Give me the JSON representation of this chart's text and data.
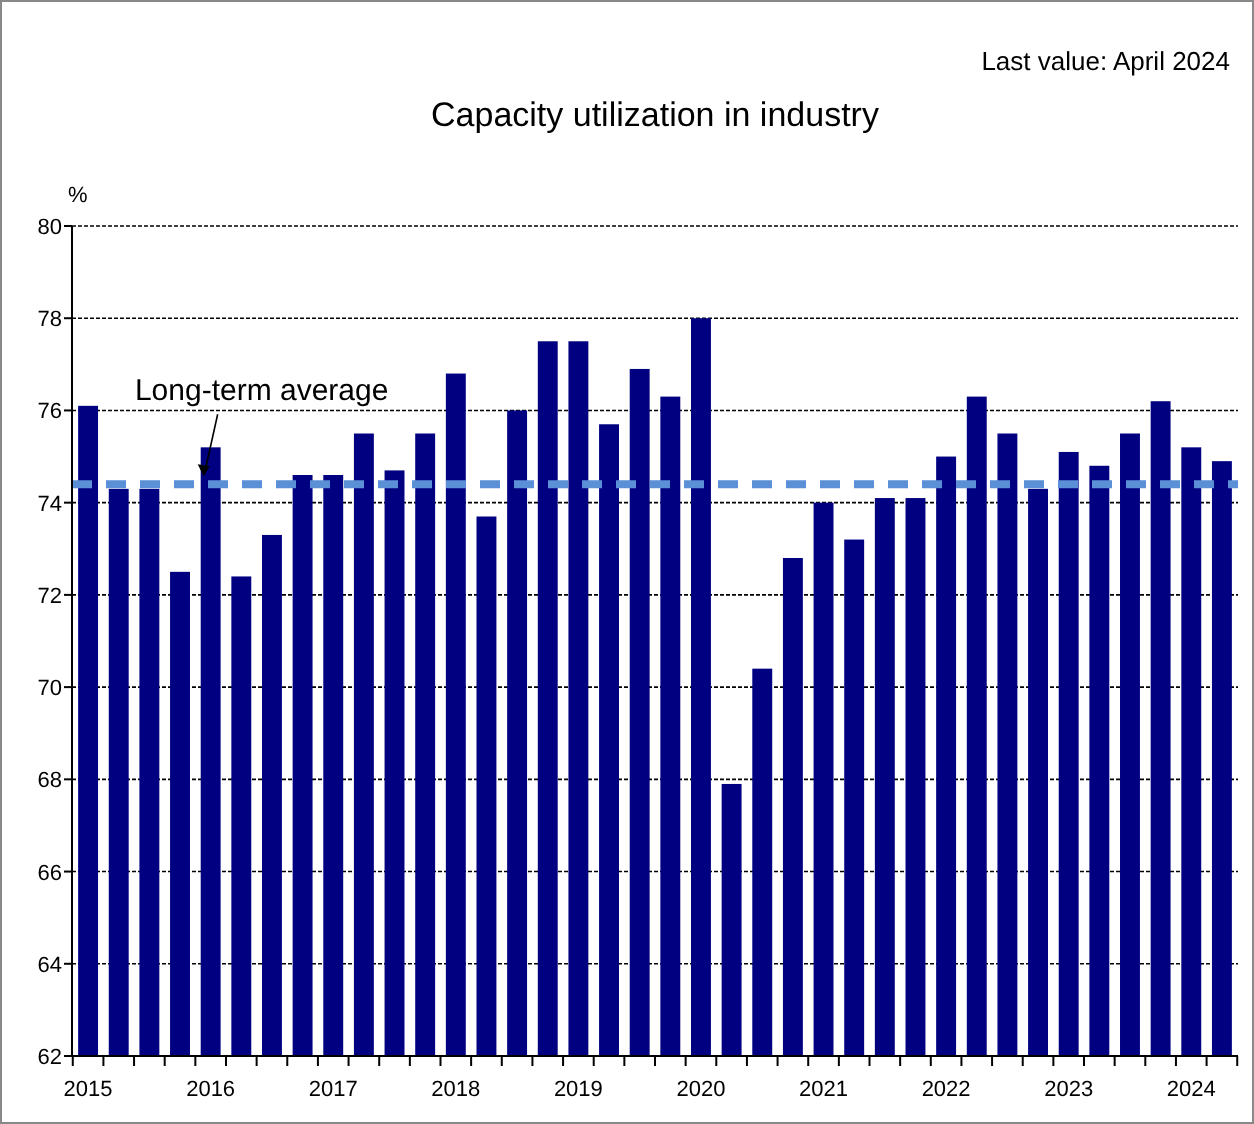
{
  "chart_data": {
    "type": "bar",
    "title": "Capacity utilization in industry",
    "ylabel": "%",
    "annotations": [
      "Last value: April 2024"
    ],
    "categories": [
      "2015",
      null,
      null,
      null,
      "2016",
      null,
      null,
      null,
      "2017",
      null,
      null,
      null,
      "2018",
      null,
      null,
      null,
      "2019",
      null,
      null,
      null,
      "2020",
      null,
      null,
      null,
      "2021",
      null,
      null,
      null,
      "2022",
      null,
      null,
      null,
      "2023",
      null,
      null,
      null,
      "2024",
      null
    ],
    "values": [
      76.1,
      74.3,
      74.3,
      72.5,
      75.2,
      72.4,
      73.3,
      74.6,
      74.6,
      75.5,
      74.7,
      75.5,
      76.8,
      73.7,
      76.0,
      77.5,
      77.5,
      75.7,
      76.9,
      76.3,
      78.0,
      67.9,
      70.4,
      72.8,
      74.0,
      73.2,
      74.1,
      74.1,
      75.0,
      76.3,
      75.5,
      74.3,
      75.1,
      74.8,
      75.5,
      76.2,
      75.2,
      74.9
    ],
    "color": "#000080",
    "ylim": [
      62,
      80
    ],
    "yticks": [
      62,
      64,
      66,
      68,
      70,
      72,
      74,
      76,
      78,
      80
    ],
    "grid": "y",
    "ref_lines": [
      {
        "axis": "y",
        "value": 74.4,
        "label": "Long-term average",
        "color": "#5b8fd6",
        "line_style": "dashed"
      }
    ]
  }
}
